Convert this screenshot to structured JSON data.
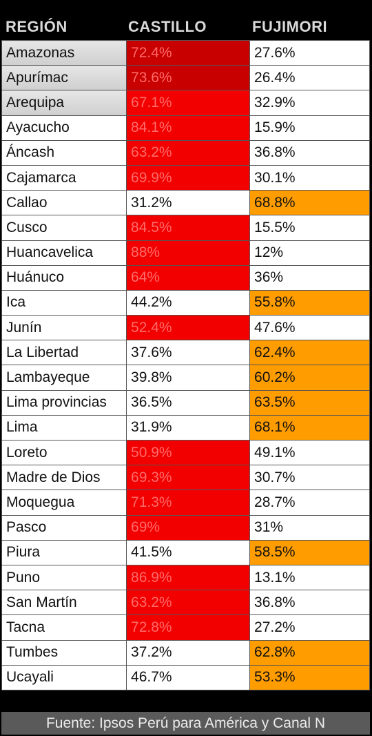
{
  "colors": {
    "castillo_win": "#f20000",
    "castillo_win_dark": "#c80000",
    "fujimori_win": "#ff9c00",
    "neutral": "#ffffff",
    "header_bg": "#000000",
    "footer_bg": "#5a5a5a"
  },
  "header": {
    "region": "REGIÓN",
    "castillo": "CASTILLO",
    "fujimori": "FUJIMORI"
  },
  "footer": "Fuente: Ipsos Perú para América y Canal N",
  "chart_data": {
    "type": "table",
    "columns": [
      "REGIÓN",
      "CASTILLO",
      "FUJIMORI"
    ],
    "rows": [
      {
        "region": "Amazonas",
        "castillo": "72.4%",
        "fujimori": "27.6%",
        "winner": "castillo"
      },
      {
        "region": "Apurímac",
        "castillo": "73.6%",
        "fujimori": "26.4%",
        "winner": "castillo"
      },
      {
        "region": "Arequipa",
        "castillo": "67.1%",
        "fujimori": "32.9%",
        "winner": "castillo"
      },
      {
        "region": "Ayacucho",
        "castillo": "84.1%",
        "fujimori": "15.9%",
        "winner": "castillo"
      },
      {
        "region": "Áncash",
        "castillo": "63.2%",
        "fujimori": "36.8%",
        "winner": "castillo"
      },
      {
        "region": "Cajamarca",
        "castillo": "69.9%",
        "fujimori": "30.1%",
        "winner": "castillo"
      },
      {
        "region": "Callao",
        "castillo": "31.2%",
        "fujimori": "68.8%",
        "winner": "fujimori"
      },
      {
        "region": "Cusco",
        "castillo": "84.5%",
        "fujimori": "15.5%",
        "winner": "castillo"
      },
      {
        "region": "Huancavelica",
        "castillo": "88%",
        "fujimori": "12%",
        "winner": "castillo"
      },
      {
        "region": "Huánuco",
        "castillo": "64%",
        "fujimori": "36%",
        "winner": "castillo"
      },
      {
        "region": "Ica",
        "castillo": "44.2%",
        "fujimori": "55.8%",
        "winner": "fujimori"
      },
      {
        "region": "Junín",
        "castillo": "52.4%",
        "fujimori": "47.6%",
        "winner": "castillo"
      },
      {
        "region": "La Libertad",
        "castillo": "37.6%",
        "fujimori": "62.4%",
        "winner": "fujimori"
      },
      {
        "region": "Lambayeque",
        "castillo": "39.8%",
        "fujimori": "60.2%",
        "winner": "fujimori"
      },
      {
        "region": "Lima provincias",
        "castillo": "36.5%",
        "fujimori": "63.5%",
        "winner": "fujimori"
      },
      {
        "region": "Lima",
        "castillo": "31.9%",
        "fujimori": "68.1%",
        "winner": "fujimori"
      },
      {
        "region": "Loreto",
        "castillo": "50.9%",
        "fujimori": "49.1%",
        "winner": "castillo"
      },
      {
        "region": "Madre de Dios",
        "castillo": "69.3%",
        "fujimori": "30.7%",
        "winner": "castillo"
      },
      {
        "region": "Moquegua",
        "castillo": "71.3%",
        "fujimori": "28.7%",
        "winner": "castillo"
      },
      {
        "region": "Pasco",
        "castillo": "69%",
        "fujimori": "31%",
        "winner": "castillo"
      },
      {
        "region": "Piura",
        "castillo": "41.5%",
        "fujimori": "58.5%",
        "winner": "fujimori"
      },
      {
        "region": "Puno",
        "castillo": "86.9%",
        "fujimori": "13.1%",
        "winner": "castillo"
      },
      {
        "region": "San Martín",
        "castillo": "63.2%",
        "fujimori": "36.8%",
        "winner": "castillo"
      },
      {
        "region": "Tacna",
        "castillo": "72.8%",
        "fujimori": "27.2%",
        "winner": "castillo"
      },
      {
        "region": "Tumbes",
        "castillo": "37.2%",
        "fujimori": "62.8%",
        "winner": "fujimori"
      },
      {
        "region": "Ucayali",
        "castillo": "46.7%",
        "fujimori": "53.3%",
        "winner": "fujimori"
      }
    ]
  }
}
